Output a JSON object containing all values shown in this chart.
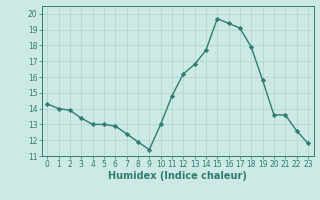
{
  "x": [
    0,
    1,
    2,
    3,
    4,
    5,
    6,
    7,
    8,
    9,
    10,
    11,
    12,
    13,
    14,
    15,
    16,
    17,
    18,
    19,
    20,
    21,
    22,
    23
  ],
  "y": [
    14.3,
    14.0,
    13.9,
    13.4,
    13.0,
    13.0,
    12.9,
    12.4,
    11.9,
    11.4,
    13.0,
    14.8,
    16.2,
    16.8,
    17.7,
    19.7,
    19.4,
    19.1,
    17.9,
    15.8,
    13.6,
    13.6,
    12.6,
    11.8
  ],
  "line_color": "#2e7d6e",
  "marker": "D",
  "markersize": 2.2,
  "linewidth": 1.0,
  "xlabel": "Humidex (Indice chaleur)",
  "xlabel_fontsize": 7,
  "background_color": "#cce9e5",
  "grid_color": "#afd4cf",
  "xlim": [
    -0.5,
    23.5
  ],
  "ylim": [
    11,
    20.5
  ],
  "yticks": [
    11,
    12,
    13,
    14,
    15,
    16,
    17,
    18,
    19,
    20
  ],
  "xticks": [
    0,
    1,
    2,
    3,
    4,
    5,
    6,
    7,
    8,
    9,
    10,
    11,
    12,
    13,
    14,
    15,
    16,
    17,
    18,
    19,
    20,
    21,
    22,
    23
  ],
  "tick_fontsize": 5.5,
  "tick_color": "#2e7d6e",
  "spine_color": "#2e7d6e"
}
